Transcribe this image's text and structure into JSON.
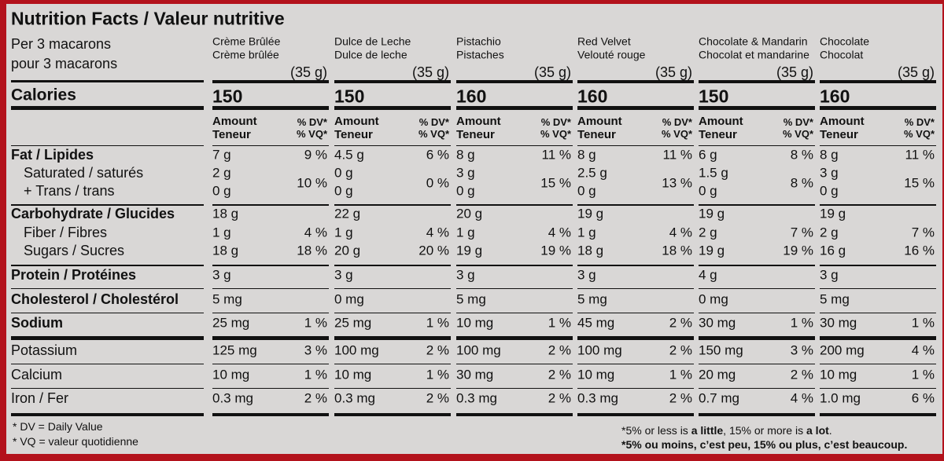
{
  "title": "Nutrition Facts / Valeur nutritive",
  "serving": [
    "Per 3 macarons",
    "pour 3 macarons"
  ],
  "headers": {
    "amount": "Amount",
    "amount_fr": "Teneur",
    "dv": "% DV*",
    "dv_fr": "% VQ*"
  },
  "labels": {
    "calories": "Calories",
    "fat": "Fat / Lipides",
    "saturated": "Saturated / saturés",
    "trans": "+ Trans / trans",
    "carbohydrate": "Carbohydrate / Glucides",
    "fiber": "Fiber / Fibres",
    "sugars": "Sugars / Sucres",
    "protein": "Protein / Protéines",
    "cholesterol": "Cholesterol / Cholestérol",
    "sodium": "Sodium",
    "potassium": "Potassium",
    "calcium": "Calcium",
    "iron": "Iron / Fer"
  },
  "products": [
    {
      "name": "Crème Brûlée",
      "name_fr": "Crème brûlée",
      "size": "(35 g)",
      "calories": "150",
      "fat": "7 g",
      "fat_dv": "9 %",
      "saturated": "2 g",
      "trans": "0 g",
      "sat_trans_dv": "10 %",
      "carbohydrate": "18 g",
      "fiber": "1 g",
      "fiber_dv": "4 %",
      "sugars": "18 g",
      "sugars_dv": "18 %",
      "protein": "3 g",
      "cholesterol": "5 mg",
      "sodium": "25 mg",
      "sodium_dv": "1 %",
      "potassium": "125 mg",
      "potassium_dv": "3 %",
      "calcium": "10 mg",
      "calcium_dv": "1 %",
      "iron": "0.3 mg",
      "iron_dv": "2 %"
    },
    {
      "name": "Dulce de Leche",
      "name_fr": "Dulce de leche",
      "size": "(35 g)",
      "calories": "150",
      "fat": "4.5 g",
      "fat_dv": "6 %",
      "saturated": "0 g",
      "trans": "0 g",
      "sat_trans_dv": "0 %",
      "carbohydrate": "22 g",
      "fiber": "1 g",
      "fiber_dv": "4 %",
      "sugars": "20 g",
      "sugars_dv": "20 %",
      "protein": "3 g",
      "cholesterol": "0 mg",
      "sodium": "25 mg",
      "sodium_dv": "1 %",
      "potassium": "100 mg",
      "potassium_dv": "2 %",
      "calcium": "10 mg",
      "calcium_dv": "1 %",
      "iron": "0.3 mg",
      "iron_dv": "2 %"
    },
    {
      "name": "Pistachio",
      "name_fr": "Pistaches",
      "size": "(35 g)",
      "calories": "160",
      "fat": "8 g",
      "fat_dv": "11 %",
      "saturated": "3 g",
      "trans": "0 g",
      "sat_trans_dv": "15 %",
      "carbohydrate": "20 g",
      "fiber": "1 g",
      "fiber_dv": "4 %",
      "sugars": "19 g",
      "sugars_dv": "19 %",
      "protein": "3 g",
      "cholesterol": "5 mg",
      "sodium": "10 mg",
      "sodium_dv": "1 %",
      "potassium": "100 mg",
      "potassium_dv": "2 %",
      "calcium": "30 mg",
      "calcium_dv": "2 %",
      "iron": "0.3 mg",
      "iron_dv": "2 %"
    },
    {
      "name": "Red Velvet",
      "name_fr": "Velouté rouge",
      "size": "(35 g)",
      "calories": "160",
      "fat": "8 g",
      "fat_dv": "11 %",
      "saturated": "2.5 g",
      "trans": "0 g",
      "sat_trans_dv": "13 %",
      "carbohydrate": "19 g",
      "fiber": "1 g",
      "fiber_dv": "4 %",
      "sugars": "18 g",
      "sugars_dv": "18 %",
      "protein": "3 g",
      "cholesterol": "5 mg",
      "sodium": "45 mg",
      "sodium_dv": "2 %",
      "potassium": "100 mg",
      "potassium_dv": "2 %",
      "calcium": "10 mg",
      "calcium_dv": "1 %",
      "iron": "0.3 mg",
      "iron_dv": "2 %"
    },
    {
      "name": "Chocolate & Mandarin",
      "name_fr": "Chocolat et mandarine",
      "size": "(35 g)",
      "calories": "150",
      "fat": "6 g",
      "fat_dv": "8 %",
      "saturated": "1.5 g",
      "trans": "0 g",
      "sat_trans_dv": "8 %",
      "carbohydrate": "19 g",
      "fiber": "2 g",
      "fiber_dv": "7 %",
      "sugars": "19 g",
      "sugars_dv": "19 %",
      "protein": "4 g",
      "cholesterol": "0 mg",
      "sodium": "30 mg",
      "sodium_dv": "1 %",
      "potassium": "150 mg",
      "potassium_dv": "3 %",
      "calcium": "20 mg",
      "calcium_dv": "2 %",
      "iron": "0.7 mg",
      "iron_dv": "4 %"
    },
    {
      "name": "Chocolate",
      "name_fr": "Chocolat",
      "size": "(35 g)",
      "calories": "160",
      "fat": "8 g",
      "fat_dv": "11 %",
      "saturated": "3 g",
      "trans": "0 g",
      "sat_trans_dv": "15 %",
      "carbohydrate": "19 g",
      "fiber": "2 g",
      "fiber_dv": "7 %",
      "sugars": "16 g",
      "sugars_dv": "16 %",
      "protein": "3 g",
      "cholesterol": "5 mg",
      "sodium": "30 mg",
      "sodium_dv": "1 %",
      "potassium": "200 mg",
      "potassium_dv": "4 %",
      "calcium": "10 mg",
      "calcium_dv": "1 %",
      "iron": "1.0 mg",
      "iron_dv": "6 %"
    }
  ],
  "footnotes": {
    "dv": "* DV = Daily Value",
    "vq": "* VQ = valeur quotidienne",
    "en": [
      "*5% or less is ",
      "a little",
      ", 15% or more is ",
      "a lot",
      "."
    ],
    "fr": [
      "*5% ou moins, c’est ",
      "peu",
      ", 15% ou plus, c’est ",
      "beaucoup",
      "."
    ]
  }
}
